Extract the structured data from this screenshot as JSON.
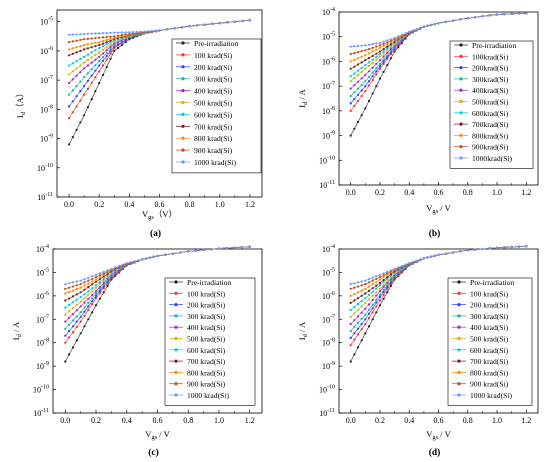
{
  "series_colors": [
    "#222222",
    "#ff2a2a",
    "#2a3cff",
    "#13b3a0",
    "#b020c8",
    "#d8b000",
    "#00c8e8",
    "#7a1a1a",
    "#ff8800",
    "#c84a10",
    "#6a9aff"
  ],
  "legend_entries_a": [
    "Pre-irradiation",
    "100 krad(Si)",
    "200 krad(Si)",
    "300 krad(Si)",
    "400 krad(Si)",
    "500 krad(Si)",
    "600 krad(Si)",
    "700 krad(Si)",
    "800 krad(Si)",
    "900 krad(Si)",
    "1000 krad(Si)"
  ],
  "legend_entries_b": [
    "Pre-irradiation",
    "100krad(Si)",
    "200krad(Si)",
    "300krad(Si)",
    "400krad(Si)",
    "500krad(Si)",
    "600krad(Si)",
    "700krad(Si)",
    "800krad(Si)",
    "900krad(Si)",
    "1000krad(Si)"
  ],
  "chart_data": [
    {
      "type": "line",
      "panel_label": "(a)",
      "xlabel_main": "V",
      "xlabel_sub": "gs",
      "xlabel_unit": "（V）",
      "ylabel_main": "I",
      "ylabel_sub": "d",
      "ylabel_unit": "（A）",
      "xlim": [
        -0.08,
        1.28
      ],
      "ylim_exp": [
        -11,
        -4.6
      ],
      "log_y": true,
      "x_ticks": [
        "0.0",
        "0.2",
        "0.4",
        "0.6",
        "0.8",
        "1.0",
        "1.2"
      ],
      "y_ticks": [
        {
          "base": "10",
          "exp": "-11"
        },
        {
          "base": "10",
          "exp": "-10"
        },
        {
          "base": "10",
          "exp": "-9"
        },
        {
          "base": "10",
          "exp": "-8"
        },
        {
          "base": "10",
          "exp": "-7"
        },
        {
          "base": "10",
          "exp": "-6"
        },
        {
          "base": "10",
          "exp": "-5"
        }
      ],
      "legend_position": "right",
      "x": [
        0.0,
        0.1,
        0.2,
        0.3,
        0.4,
        0.5,
        0.6,
        0.8,
        1.0,
        1.2
      ],
      "series": [
        {
          "values_log10": [
            -9.2,
            -8.2,
            -7.1,
            -6.0,
            -5.6,
            -5.4,
            -5.3,
            -5.15,
            -5.05,
            -4.95
          ]
        },
        {
          "values_log10": [
            -8.3,
            -7.5,
            -6.7,
            -5.9,
            -5.55,
            -5.4,
            -5.3,
            -5.15,
            -5.05,
            -4.95
          ]
        },
        {
          "values_log10": [
            -7.9,
            -7.2,
            -6.5,
            -5.85,
            -5.55,
            -5.4,
            -5.3,
            -5.15,
            -5.05,
            -4.95
          ]
        },
        {
          "values_log10": [
            -7.5,
            -6.9,
            -6.35,
            -5.8,
            -5.5,
            -5.4,
            -5.3,
            -5.15,
            -5.05,
            -4.95
          ]
        },
        {
          "values_log10": [
            -7.1,
            -6.6,
            -6.2,
            -5.75,
            -5.5,
            -5.38,
            -5.3,
            -5.15,
            -5.05,
            -4.95
          ]
        },
        {
          "values_log10": [
            -6.8,
            -6.4,
            -6.05,
            -5.7,
            -5.5,
            -5.38,
            -5.3,
            -5.15,
            -5.05,
            -4.95
          ]
        },
        {
          "values_log10": [
            -6.5,
            -6.2,
            -5.9,
            -5.65,
            -5.48,
            -5.37,
            -5.3,
            -5.15,
            -5.05,
            -4.95
          ]
        },
        {
          "values_log10": [
            -6.15,
            -5.95,
            -5.8,
            -5.6,
            -5.46,
            -5.37,
            -5.3,
            -5.15,
            -5.05,
            -4.95
          ]
        },
        {
          "values_log10": [
            -5.95,
            -5.8,
            -5.7,
            -5.55,
            -5.45,
            -5.36,
            -5.3,
            -5.15,
            -5.05,
            -4.95
          ]
        },
        {
          "values_log10": [
            -5.7,
            -5.6,
            -5.55,
            -5.5,
            -5.42,
            -5.35,
            -5.3,
            -5.15,
            -5.05,
            -4.95
          ]
        },
        {
          "values_log10": [
            -5.45,
            -5.42,
            -5.4,
            -5.38,
            -5.36,
            -5.34,
            -5.3,
            -5.15,
            -5.05,
            -4.95
          ]
        }
      ]
    },
    {
      "type": "line",
      "panel_label": "(b)",
      "xlabel_main": "V",
      "xlabel_sub": "gs",
      "xlabel_unit": " / V",
      "ylabel_main": "I",
      "ylabel_sub": "d",
      "ylabel_unit": " / A",
      "xlim": [
        -0.08,
        1.28
      ],
      "ylim_exp": [
        -11,
        -4
      ],
      "log_y": true,
      "x_ticks": [
        "0.0",
        "0.2",
        "0.4",
        "0.6",
        "0.8",
        "1.0",
        "1.2"
      ],
      "y_ticks": [
        {
          "base": "10",
          "exp": "-11"
        },
        {
          "base": "10",
          "exp": "-10"
        },
        {
          "base": "10",
          "exp": "-9"
        },
        {
          "base": "10",
          "exp": "-8"
        },
        {
          "base": "10",
          "exp": "-7"
        },
        {
          "base": "10",
          "exp": "-6"
        },
        {
          "base": "10",
          "exp": "-5"
        },
        {
          "base": "10",
          "exp": "-4"
        }
      ],
      "legend_position": "right",
      "x": [
        0.0,
        0.1,
        0.2,
        0.3,
        0.4,
        0.5,
        0.6,
        0.8,
        1.0,
        1.2
      ],
      "series": [
        {
          "values_log10": [
            -9.0,
            -7.9,
            -6.7,
            -5.6,
            -4.9,
            -4.6,
            -4.45,
            -4.25,
            -4.1,
            -4.05
          ]
        },
        {
          "values_log10": [
            -8.0,
            -7.2,
            -6.3,
            -5.5,
            -4.9,
            -4.6,
            -4.45,
            -4.25,
            -4.1,
            -4.05
          ]
        },
        {
          "values_log10": [
            -7.7,
            -7.0,
            -6.2,
            -5.45,
            -4.88,
            -4.6,
            -4.45,
            -4.25,
            -4.1,
            -4.05
          ]
        },
        {
          "values_log10": [
            -7.4,
            -6.8,
            -6.1,
            -5.4,
            -4.86,
            -4.6,
            -4.45,
            -4.25,
            -4.1,
            -4.05
          ]
        },
        {
          "values_log10": [
            -7.1,
            -6.55,
            -5.95,
            -5.35,
            -4.85,
            -4.6,
            -4.45,
            -4.25,
            -4.1,
            -4.05
          ]
        },
        {
          "values_log10": [
            -6.8,
            -6.3,
            -5.8,
            -5.3,
            -4.84,
            -4.6,
            -4.45,
            -4.25,
            -4.1,
            -4.05
          ]
        },
        {
          "values_log10": [
            -6.6,
            -6.15,
            -5.7,
            -5.25,
            -4.83,
            -4.6,
            -4.45,
            -4.25,
            -4.1,
            -4.05
          ]
        },
        {
          "values_log10": [
            -6.3,
            -5.95,
            -5.6,
            -5.2,
            -4.82,
            -4.6,
            -4.45,
            -4.25,
            -4.1,
            -4.05
          ]
        },
        {
          "values_log10": [
            -6.0,
            -5.75,
            -5.45,
            -5.15,
            -4.81,
            -4.6,
            -4.45,
            -4.25,
            -4.1,
            -4.05
          ]
        },
        {
          "values_log10": [
            -5.7,
            -5.55,
            -5.35,
            -5.1,
            -4.8,
            -4.6,
            -4.45,
            -4.25,
            -4.1,
            -4.05
          ]
        },
        {
          "values_log10": [
            -5.4,
            -5.35,
            -5.25,
            -5.05,
            -4.8,
            -4.6,
            -4.45,
            -4.25,
            -4.1,
            -4.05
          ]
        }
      ]
    },
    {
      "type": "line",
      "panel_label": "(c)",
      "xlabel_main": "V",
      "xlabel_sub": "gs",
      "xlabel_unit": " / V",
      "ylabel_main": "I",
      "ylabel_sub": "d",
      "ylabel_unit": " / A",
      "xlim": [
        -0.08,
        1.28
      ],
      "ylim_exp": [
        -11,
        -4
      ],
      "log_y": true,
      "x_ticks": [
        "0.0",
        "0.2",
        "0.4",
        "0.6",
        "0.8",
        "1.0",
        "1.2"
      ],
      "y_ticks": [
        {
          "base": "10",
          "exp": "-11"
        },
        {
          "base": "10",
          "exp": "-10"
        },
        {
          "base": "10",
          "exp": "-9"
        },
        {
          "base": "10",
          "exp": "-8"
        },
        {
          "base": "10",
          "exp": "-7"
        },
        {
          "base": "10",
          "exp": "-6"
        },
        {
          "base": "10",
          "exp": "-5"
        },
        {
          "base": "10",
          "exp": "-4"
        }
      ],
      "legend_position": "right",
      "x": [
        0.0,
        0.1,
        0.2,
        0.3,
        0.4,
        0.5,
        0.6,
        0.8,
        1.0,
        1.2
      ],
      "series": [
        {
          "values_log10": [
            -8.8,
            -7.6,
            -6.4,
            -5.3,
            -4.7,
            -4.45,
            -4.3,
            -4.1,
            -3.98,
            -3.9
          ]
        },
        {
          "values_log10": [
            -8.0,
            -7.1,
            -6.1,
            -5.25,
            -4.7,
            -4.45,
            -4.3,
            -4.1,
            -3.98,
            -3.9
          ]
        },
        {
          "values_log10": [
            -7.7,
            -6.9,
            -6.0,
            -5.2,
            -4.68,
            -4.45,
            -4.3,
            -4.1,
            -3.98,
            -3.9
          ]
        },
        {
          "values_log10": [
            -7.4,
            -6.7,
            -5.9,
            -5.15,
            -4.67,
            -4.45,
            -4.3,
            -4.1,
            -3.98,
            -3.9
          ]
        },
        {
          "values_log10": [
            -7.1,
            -6.45,
            -5.8,
            -5.1,
            -4.66,
            -4.45,
            -4.3,
            -4.1,
            -3.98,
            -3.9
          ]
        },
        {
          "values_log10": [
            -6.8,
            -6.25,
            -5.65,
            -5.05,
            -4.65,
            -4.45,
            -4.3,
            -4.1,
            -3.98,
            -3.9
          ]
        },
        {
          "values_log10": [
            -6.5,
            -6.05,
            -5.55,
            -5.0,
            -4.64,
            -4.45,
            -4.3,
            -4.1,
            -3.98,
            -3.9
          ]
        },
        {
          "values_log10": [
            -6.2,
            -5.85,
            -5.4,
            -4.95,
            -4.63,
            -4.45,
            -4.3,
            -4.1,
            -3.98,
            -3.9
          ]
        },
        {
          "values_log10": [
            -5.9,
            -5.65,
            -5.3,
            -4.9,
            -4.62,
            -4.45,
            -4.3,
            -4.1,
            -3.98,
            -3.9
          ]
        },
        {
          "values_log10": [
            -5.7,
            -5.5,
            -5.2,
            -4.88,
            -4.61,
            -4.45,
            -4.3,
            -4.1,
            -3.98,
            -3.9
          ]
        },
        {
          "values_log10": [
            -5.5,
            -5.35,
            -5.1,
            -4.85,
            -4.6,
            -4.45,
            -4.3,
            -4.1,
            -3.98,
            -3.9
          ]
        }
      ]
    },
    {
      "type": "line",
      "panel_label": "(d)",
      "xlabel_main": "V",
      "xlabel_sub": "gs",
      "xlabel_unit": " / V",
      "ylabel_main": "I",
      "ylabel_sub": "d",
      "ylabel_unit": " / A",
      "xlim": [
        -0.08,
        1.28
      ],
      "ylim_exp": [
        -11,
        -4
      ],
      "log_y": true,
      "x_ticks": [
        "0.0",
        "0.2",
        "0.4",
        "0.6",
        "0.8",
        "1.0",
        "1.2"
      ],
      "y_ticks": [
        {
          "base": "10",
          "exp": "-11"
        },
        {
          "base": "10",
          "exp": "-10"
        },
        {
          "base": "10",
          "exp": "-9"
        },
        {
          "base": "10",
          "exp": "-8"
        },
        {
          "base": "10",
          "exp": "-7"
        },
        {
          "base": "10",
          "exp": "-6"
        },
        {
          "base": "10",
          "exp": "-5"
        },
        {
          "base": "10",
          "exp": "-4"
        }
      ],
      "legend_position": "right",
      "x": [
        0.0,
        0.1,
        0.2,
        0.3,
        0.4,
        0.5,
        0.6,
        0.8,
        1.0,
        1.2
      ],
      "series": [
        {
          "values_log10": [
            -8.8,
            -7.6,
            -6.4,
            -5.3,
            -4.7,
            -4.4,
            -4.25,
            -4.05,
            -3.95,
            -3.88
          ]
        },
        {
          "values_log10": [
            -8.1,
            -7.2,
            -6.2,
            -5.25,
            -4.7,
            -4.4,
            -4.25,
            -4.05,
            -3.95,
            -3.88
          ]
        },
        {
          "values_log10": [
            -7.8,
            -7.0,
            -6.05,
            -5.2,
            -4.68,
            -4.4,
            -4.25,
            -4.05,
            -3.95,
            -3.88
          ]
        },
        {
          "values_log10": [
            -7.5,
            -6.8,
            -5.95,
            -5.15,
            -4.67,
            -4.4,
            -4.25,
            -4.05,
            -3.95,
            -3.88
          ]
        },
        {
          "values_log10": [
            -7.2,
            -6.55,
            -5.8,
            -5.1,
            -4.66,
            -4.4,
            -4.25,
            -4.05,
            -3.95,
            -3.88
          ]
        },
        {
          "values_log10": [
            -6.9,
            -6.3,
            -5.7,
            -5.05,
            -4.65,
            -4.4,
            -4.25,
            -4.05,
            -3.95,
            -3.88
          ]
        },
        {
          "values_log10": [
            -6.6,
            -6.1,
            -5.55,
            -5.0,
            -4.64,
            -4.4,
            -4.25,
            -4.05,
            -3.95,
            -3.88
          ]
        },
        {
          "values_log10": [
            -6.3,
            -5.9,
            -5.45,
            -4.95,
            -4.63,
            -4.4,
            -4.25,
            -4.05,
            -3.95,
            -3.88
          ]
        },
        {
          "values_log10": [
            -6.0,
            -5.7,
            -5.3,
            -4.9,
            -4.62,
            -4.4,
            -4.25,
            -4.05,
            -3.95,
            -3.88
          ]
        },
        {
          "values_log10": [
            -5.7,
            -5.5,
            -5.2,
            -4.88,
            -4.61,
            -4.4,
            -4.25,
            -4.05,
            -3.95,
            -3.88
          ]
        },
        {
          "values_log10": [
            -5.5,
            -5.35,
            -5.1,
            -4.85,
            -4.6,
            -4.4,
            -4.25,
            -4.05,
            -3.95,
            -3.88
          ]
        }
      ]
    }
  ]
}
